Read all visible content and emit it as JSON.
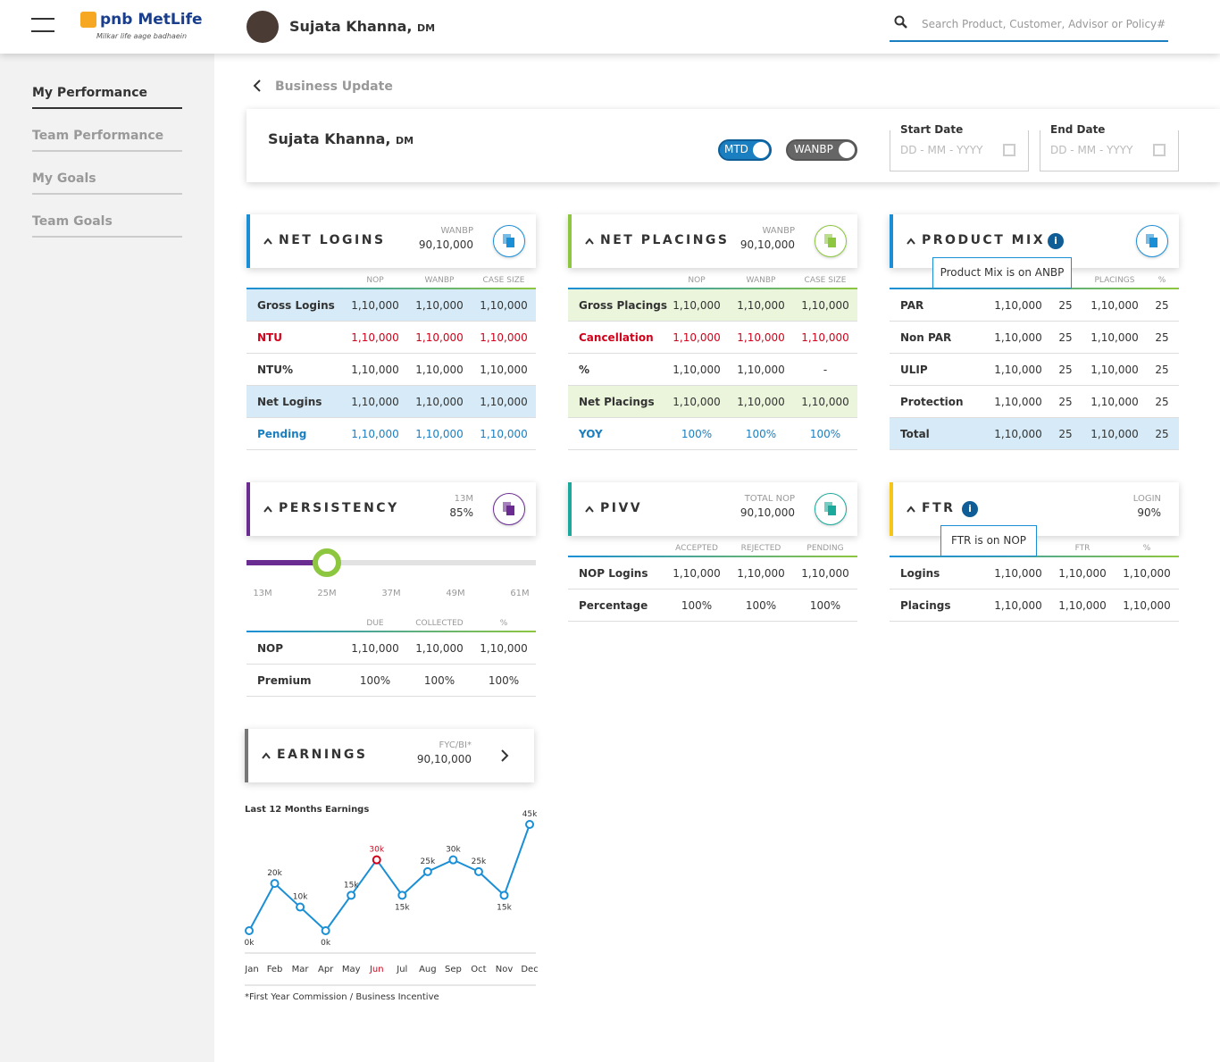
{
  "header": {
    "brand": "pnb MetLife",
    "tagline": "Milkar life aage badhaein",
    "user_name": "Sujata Khanna,",
    "user_role": "DM",
    "search_placeholder": "Search Product, Customer, Advisor or Policy#"
  },
  "sidebar": {
    "items": [
      "My Performance",
      "Team Performance",
      "My Goals",
      "Team Goals"
    ],
    "active": "My Performance"
  },
  "breadcrumb": "Business Update",
  "profile": {
    "name": "Sujata Khanna,",
    "role": "DM",
    "toggles": [
      "MTD",
      "WANBP"
    ],
    "start_date_label": "Start Date",
    "end_date_label": "End Date",
    "date_placeholder": "DD - MM - YYYY"
  },
  "cards": [
    {
      "title": "NET LOGINS",
      "accent": "#1a8fd6",
      "meta_label": "WANBP",
      "meta_value": "90,10,000",
      "columns": [
        "NOP",
        "WANBP",
        "CASE SIZE"
      ],
      "rows": [
        {
          "cells": [
            "Gross Logins",
            "1,10,000",
            "1,10,000",
            "1,10,000"
          ],
          "tone": "blue-bg"
        },
        {
          "cells": [
            "NTU",
            "1,10,000",
            "1,10,000",
            "1,10,000"
          ],
          "tone": "red"
        },
        {
          "cells": [
            "NTU%",
            "1,10,000",
            "1,10,000",
            "1,10,000"
          ],
          "tone": "plain"
        },
        {
          "cells": [
            "Net Logins",
            "1,10,000",
            "1,10,000",
            "1,10,000"
          ],
          "tone": "blue-bg"
        },
        {
          "cells": [
            "Pending",
            "1,10,000",
            "1,10,000",
            "1,10,000"
          ],
          "tone": "blue"
        }
      ]
    },
    {
      "title": "NET PLACINGS",
      "accent": "#8dc63f",
      "meta_label": "WANBP",
      "meta_value": "90,10,000",
      "columns": [
        "NOP",
        "WANBP",
        "CASE SIZE"
      ],
      "rows": [
        {
          "cells": [
            "Gross Placings",
            "1,10,000",
            "1,10,000",
            "1,10,000"
          ],
          "tone": "green-bg"
        },
        {
          "cells": [
            "Cancellation",
            "1,10,000",
            "1,10,000",
            "1,10,000"
          ],
          "tone": "red"
        },
        {
          "cells": [
            "%",
            "1,10,000",
            "1,10,000",
            "-"
          ],
          "tone": "plain"
        },
        {
          "cells": [
            "Net Placings",
            "1,10,000",
            "1,10,000",
            "1,10,000"
          ],
          "tone": "green-bg"
        },
        {
          "cells": [
            "YOY",
            "100%",
            "100%",
            "100%"
          ],
          "tone": "blue"
        }
      ]
    },
    {
      "title": "PRODUCT MIX",
      "accent": "#1a8fd6",
      "tooltip": "Product Mix is on ANBP",
      "columns": [
        "PLACINGS",
        "%"
      ],
      "rows": [
        {
          "cells": [
            "PAR",
            "1,10,000",
            "25",
            "1,10,000",
            "25"
          ],
          "tone": "plain"
        },
        {
          "cells": [
            "Non PAR",
            "1,10,000",
            "25",
            "1,10,000",
            "25"
          ],
          "tone": "plain"
        },
        {
          "cells": [
            "ULIP",
            "1,10,000",
            "25",
            "1,10,000",
            "25"
          ],
          "tone": "plain"
        },
        {
          "cells": [
            "Protection",
            "1,10,000",
            "25",
            "1,10,000",
            "25"
          ],
          "tone": "plain"
        },
        {
          "cells": [
            "Total",
            "1,10,000",
            "25",
            "1,10,000",
            "25"
          ],
          "tone": "blue-bg"
        }
      ]
    },
    {
      "title": "PERSISTENCY",
      "accent": "#6a2c91",
      "meta_label": "13M",
      "meta_value": "85%",
      "slider": {
        "ticks": [
          "13M",
          "25M",
          "37M",
          "49M",
          "61M"
        ],
        "selected": "25M"
      },
      "columns": [
        "DUE",
        "COLLECTED",
        "%"
      ],
      "rows": [
        {
          "cells": [
            "NOP",
            "1,10,000",
            "1,10,000",
            "1,10,000"
          ],
          "tone": "plain"
        },
        {
          "cells": [
            "Premium",
            "100%",
            "100%",
            "100%"
          ],
          "tone": "plain"
        }
      ]
    },
    {
      "title": "PIVV",
      "accent": "#1aa99a",
      "meta_label": "TOTAL NOP",
      "meta_value": "90,10,000",
      "columns": [
        "ACCEPTED",
        "REJECTED",
        "PENDING"
      ],
      "rows": [
        {
          "cells": [
            "NOP Logins",
            "1,10,000",
            "1,10,000",
            "1,10,000"
          ],
          "tone": "plain"
        },
        {
          "cells": [
            "Percentage",
            "100%",
            "100%",
            "100%"
          ],
          "tone": "plain"
        }
      ]
    },
    {
      "title": "FTR",
      "accent": "#f5c518",
      "tooltip": "FTR is on NOP",
      "meta_label": "LOGIN",
      "meta_value": "90%",
      "columns": [
        "FTR",
        "%"
      ],
      "rows": [
        {
          "cells": [
            "Logins",
            "1,10,000",
            "1,10,000",
            "1,10,000"
          ],
          "tone": "plain"
        },
        {
          "cells": [
            "Placings",
            "1,10,000",
            "1,10,000",
            "1,10,000"
          ],
          "tone": "plain"
        }
      ]
    }
  ],
  "earnings": {
    "title": "EARNINGS",
    "accent": "#777777",
    "meta_label": "FYC/BI*",
    "meta_value": "90,10,000",
    "footnote": "*First Year Commission / Business Incentive"
  },
  "chart_data": {
    "type": "line",
    "title": "Last 12 Months Earnings",
    "categories": [
      "Jan",
      "Feb",
      "Mar",
      "Apr",
      "May",
      "Jun",
      "Jul",
      "Aug",
      "Sep",
      "Oct",
      "Nov",
      "Dec"
    ],
    "values": [
      0,
      20,
      10,
      0,
      15,
      30,
      15,
      25,
      30,
      25,
      15,
      45
    ],
    "value_labels": [
      "0k",
      "20k",
      "10k",
      "0k",
      "15k",
      "30k",
      "15k",
      "25k",
      "30k",
      "25k",
      "15k",
      "45k"
    ],
    "color": "#1a8fd6",
    "highlight": "Jun",
    "highlight_color": "#d0021b"
  }
}
